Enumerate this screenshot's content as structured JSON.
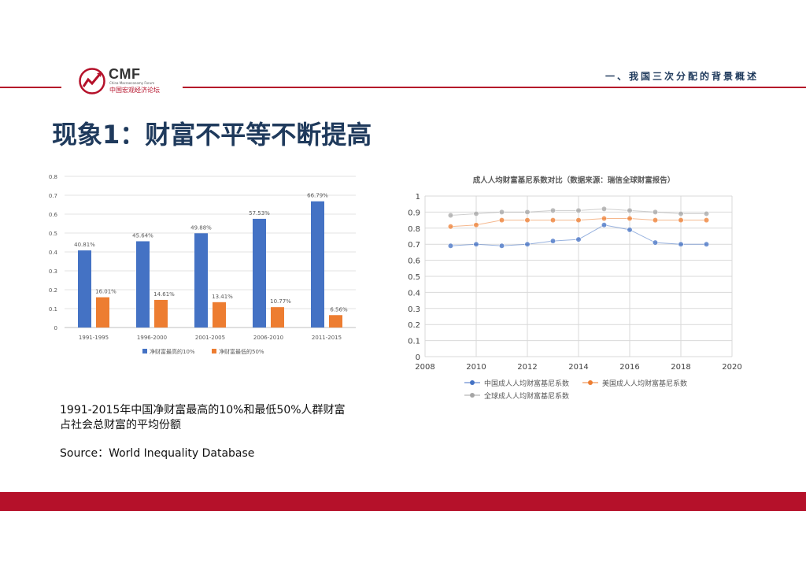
{
  "header": {
    "logo_text": "CMF",
    "logo_sub": "China Macroeconomy Forum",
    "logo_cn": "中国宏观经济论坛",
    "section_title": "一、我国三次分配的背景概述"
  },
  "page_title": "现象1：财富不平等不断提高",
  "caption": {
    "line1": "1991-2015年中国净财富最高的10%和最低50%人群财富",
    "line2": "占社会总财富的平均份额",
    "source": "Source：World Inequality Database"
  },
  "chart_data": [
    {
      "type": "bar",
      "title": "",
      "categories": [
        "1991-1995",
        "1996-2000",
        "2001-2005",
        "2006-2010",
        "2011-2015"
      ],
      "series": [
        {
          "name": "净财富最高的10%",
          "values": [
            0.4081,
            0.4564,
            0.4988,
            0.5753,
            0.6679
          ],
          "labels": [
            "40.81%",
            "45.64%",
            "49.88%",
            "57.53%",
            "66.79%"
          ],
          "color": "#4472c4"
        },
        {
          "name": "净财富最低的50%",
          "values": [
            0.1601,
            0.1461,
            0.1341,
            0.1077,
            0.0656
          ],
          "labels": [
            "16.01%",
            "14.61%",
            "13.41%",
            "10.77%",
            "6.56%"
          ],
          "color": "#ed7d31"
        }
      ],
      "ylim": [
        0,
        0.8
      ],
      "yticks": [
        "0",
        "0.1",
        "0.2",
        "0.3",
        "0.4",
        "0.5",
        "0.6",
        "0.7",
        "0.8"
      ],
      "grid": true,
      "legend": "bottom"
    },
    {
      "type": "line",
      "title": "成人人均财富基尼系数对比（数据来源：瑞信全球财富报告）",
      "xlim": [
        2008,
        2020
      ],
      "ylim": [
        0,
        1
      ],
      "xticks": [
        "2008",
        "2010",
        "2012",
        "2014",
        "2016",
        "2018",
        "2020"
      ],
      "yticks": [
        "0",
        "0.1",
        "0.2",
        "0.3",
        "0.4",
        "0.5",
        "0.6",
        "0.7",
        "0.8",
        "0.9",
        "1"
      ],
      "grid": true,
      "legend": "bottom",
      "series": [
        {
          "name": "中国成人人均财富基尼系数",
          "color": "#4472c4",
          "x": [
            2009,
            2010,
            2011,
            2012,
            2013,
            2014,
            2015,
            2016,
            2017,
            2018,
            2019
          ],
          "y": [
            0.69,
            0.7,
            0.69,
            0.7,
            0.72,
            0.73,
            0.82,
            0.79,
            0.71,
            0.7,
            0.7
          ]
        },
        {
          "name": "美国成人人均财富基尼系数",
          "color": "#ed7d31",
          "x": [
            2009,
            2010,
            2011,
            2012,
            2013,
            2014,
            2015,
            2016,
            2017,
            2018,
            2019
          ],
          "y": [
            0.81,
            0.82,
            0.85,
            0.85,
            0.85,
            0.85,
            0.86,
            0.86,
            0.85,
            0.85,
            0.85
          ]
        },
        {
          "name": "全球成人人均财富基尼系数",
          "color": "#a5a5a5",
          "x": [
            2009,
            2010,
            2011,
            2012,
            2013,
            2014,
            2015,
            2016,
            2017,
            2018,
            2019
          ],
          "y": [
            0.88,
            0.89,
            0.9,
            0.9,
            0.91,
            0.91,
            0.92,
            0.91,
            0.9,
            0.89,
            0.89
          ]
        }
      ]
    }
  ]
}
